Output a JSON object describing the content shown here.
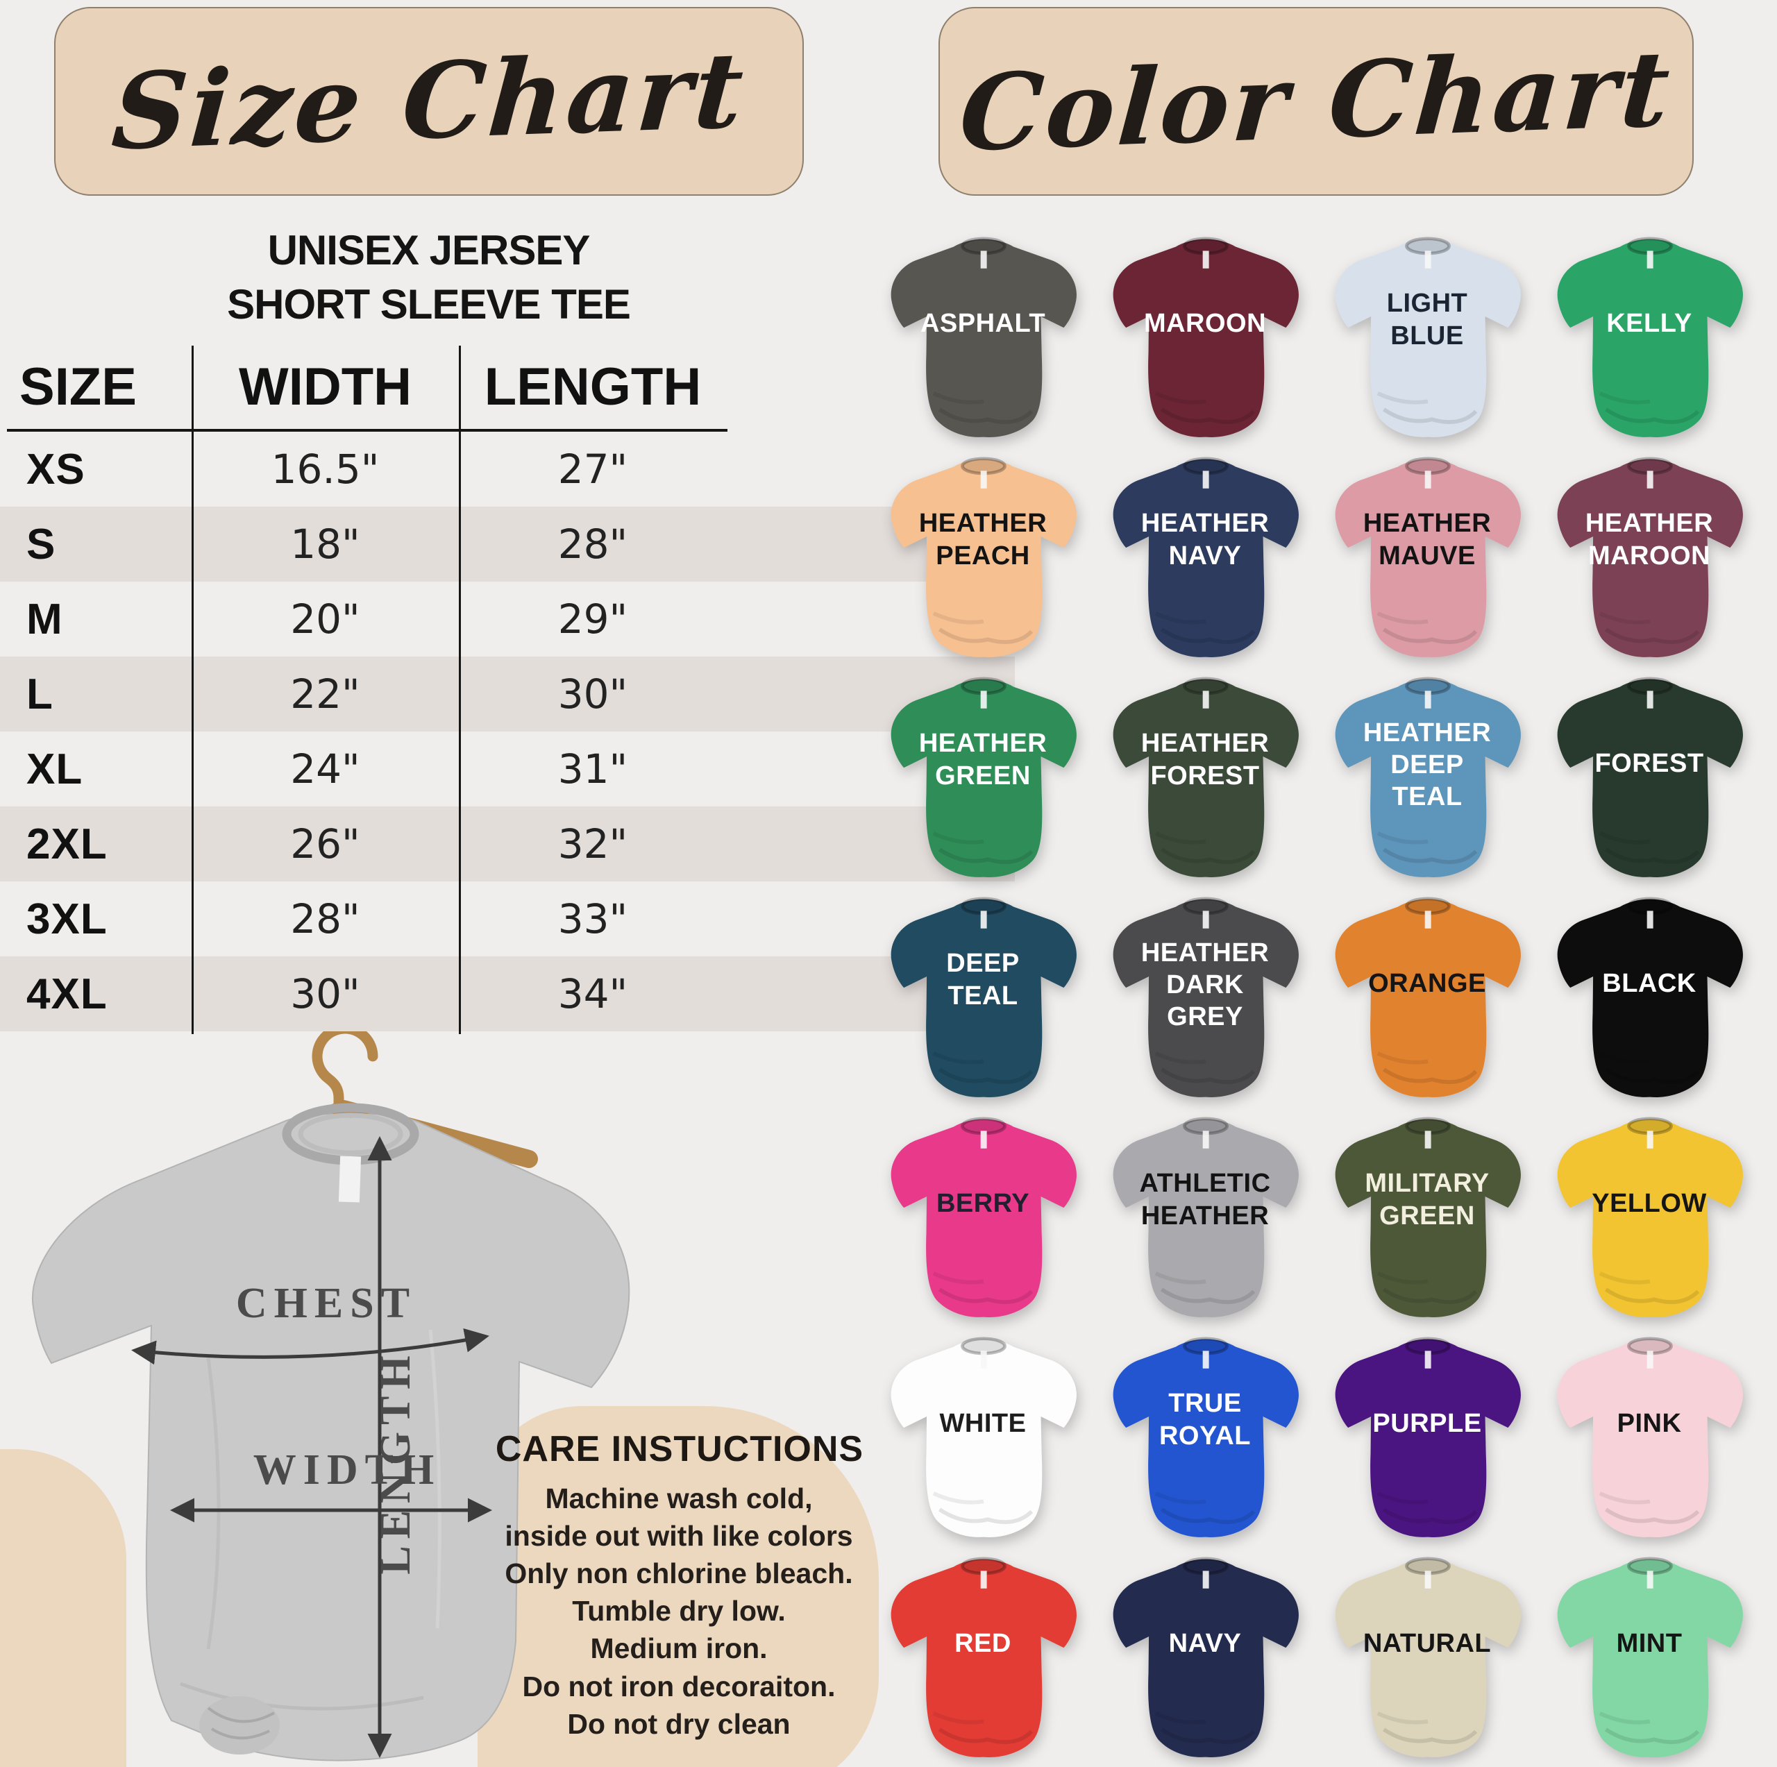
{
  "theme": {
    "background": "#efeeed",
    "beige_card": "#e8d3ba",
    "beige_blob": "#ecd8bf",
    "table_stripe": "#e3ddda",
    "table_line": "#161616",
    "tee_grey": "#c9c9c9",
    "hanger_wood": "#b6874b"
  },
  "size_chart": {
    "title": "Size Chart",
    "product_line1": "UNISEX JERSEY",
    "product_line2": "SHORT SLEEVE TEE",
    "columns": [
      "SIZE",
      "WIDTH",
      "LENGTH"
    ],
    "rows": [
      {
        "size": "XS",
        "width": "16.5\"",
        "length": "27\""
      },
      {
        "size": "S",
        "width": "18\"",
        "length": "28\""
      },
      {
        "size": "M",
        "width": "20\"",
        "length": "29\""
      },
      {
        "size": "L",
        "width": "22\"",
        "length": "30\""
      },
      {
        "size": "XL",
        "width": "24\"",
        "length": "31\""
      },
      {
        "size": "2XL",
        "width": "26\"",
        "length": "32\""
      },
      {
        "size": "3XL",
        "width": "28\"",
        "length": "33\""
      },
      {
        "size": "4XL",
        "width": "30\"",
        "length": "34\""
      }
    ]
  },
  "diagram": {
    "chest": "CHEST",
    "width": "WIDTH",
    "length": "LENGTH"
  },
  "care": {
    "heading": "CARE INSTUCTIONS",
    "lines": [
      "Machine wash cold,",
      "inside out with like colors",
      "Only non chlorine bleach.",
      "Tumble dry low.",
      "Medium iron.",
      "Do not iron decoraiton.",
      "Do not dry clean"
    ]
  },
  "color_chart": {
    "title": "Color Chart",
    "shirts": [
      {
        "name": "ASPHALT",
        "lines": [
          "ASPHALT"
        ],
        "color": "#585650",
        "text": "#ffffff"
      },
      {
        "name": "MAROON",
        "lines": [
          "MAROON"
        ],
        "color": "#6b2535",
        "text": "#ffffff"
      },
      {
        "name": "LIGHT BLUE",
        "lines": [
          "LIGHT",
          "BLUE"
        ],
        "color": "#d7e0eb",
        "text": "#1a2433"
      },
      {
        "name": "KELLY",
        "lines": [
          "KELLY"
        ],
        "color": "#2aa567",
        "text": "#ffffff"
      },
      {
        "name": "HEATHER PEACH",
        "lines": [
          "HEATHER",
          "PEACH"
        ],
        "color": "#f6c091",
        "text": "#131313"
      },
      {
        "name": "HEATHER NAVY",
        "lines": [
          "HEATHER",
          "NAVY"
        ],
        "color": "#2c3b5e",
        "text": "#ffffff"
      },
      {
        "name": "HEATHER MAUVE",
        "lines": [
          "HEATHER",
          "MAUVE"
        ],
        "color": "#dc9ba5",
        "text": "#131313"
      },
      {
        "name": "HEATHER MAROON",
        "lines": [
          "HEATHER",
          "MAROON"
        ],
        "color": "#7d4156",
        "text": "#ffffff"
      },
      {
        "name": "HEATHER GREEN",
        "lines": [
          "HEATHER",
          "GREEN"
        ],
        "color": "#2f8d58",
        "text": "#ffffff"
      },
      {
        "name": "HEATHER FOREST",
        "lines": [
          "HEATHER",
          "FOREST"
        ],
        "color": "#3c4b39",
        "text": "#ffffff"
      },
      {
        "name": "HEATHER DEEP TEAL",
        "lines": [
          "HEATHER",
          "DEEP",
          "TEAL"
        ],
        "color": "#5e95ba",
        "text": "#ffffff"
      },
      {
        "name": "FOREST",
        "lines": [
          "FOREST"
        ],
        "color": "#273a2d",
        "text": "#ffffff"
      },
      {
        "name": "DEEP TEAL",
        "lines": [
          "DEEP",
          "TEAL"
        ],
        "color": "#204b60",
        "text": "#ffffff"
      },
      {
        "name": "HEATHER DARK GREY",
        "lines": [
          "HEATHER",
          "DARK",
          "GREY"
        ],
        "color": "#4b4b4d",
        "text": "#ffffff"
      },
      {
        "name": "ORANGE",
        "lines": [
          "ORANGE"
        ],
        "color": "#e1822f",
        "text": "#151515"
      },
      {
        "name": "BLACK",
        "lines": [
          "BLACK"
        ],
        "color": "#0d0d0d",
        "text": "#ffffff"
      },
      {
        "name": "BERRY",
        "lines": [
          "BERRY"
        ],
        "color": "#e8398b",
        "text": "#20202e"
      },
      {
        "name": "ATHLETIC HEATHER",
        "lines": [
          "ATHLETIC",
          "HEATHER"
        ],
        "color": "#aaa9ad",
        "text": "#131313"
      },
      {
        "name": "MILITARY GREEN",
        "lines": [
          "MILITARY",
          "GREEN"
        ],
        "color": "#4d5839",
        "text": "#f2efdf"
      },
      {
        "name": "YELLOW",
        "lines": [
          "YELLOW"
        ],
        "color": "#f2c431",
        "text": "#151515"
      },
      {
        "name": "WHITE",
        "lines": [
          "WHITE"
        ],
        "color": "#fdfdfd",
        "text": "#1d1d1d"
      },
      {
        "name": "TRUE ROYAL",
        "lines": [
          "TRUE",
          "ROYAL"
        ],
        "color": "#2255cf",
        "text": "#ffffff"
      },
      {
        "name": "PURPLE",
        "lines": [
          "PURPLE"
        ],
        "color": "#4b1581",
        "text": "#ffffff"
      },
      {
        "name": "PINK",
        "lines": [
          "PINK"
        ],
        "color": "#f7d3d9",
        "text": "#151515"
      },
      {
        "name": "RED",
        "lines": [
          "RED"
        ],
        "color": "#e23c35",
        "text": "#ffffff"
      },
      {
        "name": "NAVY",
        "lines": [
          "NAVY"
        ],
        "color": "#232b4f",
        "text": "#ffffff"
      },
      {
        "name": "NATURAL",
        "lines": [
          "NATURAL"
        ],
        "color": "#dcd5bc",
        "text": "#151515"
      },
      {
        "name": "MINT",
        "lines": [
          "MINT"
        ],
        "color": "#82d7a5",
        "text": "#151515"
      }
    ]
  }
}
